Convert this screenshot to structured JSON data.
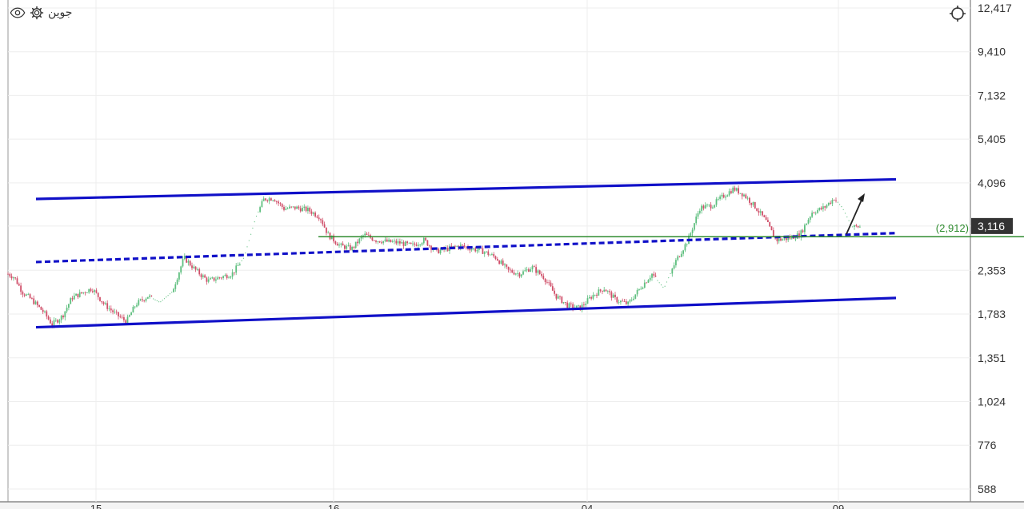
{
  "toolbar": {
    "symbol_label": "جوین",
    "settings_icon": "gear-icon",
    "visibility_icon": "eye-icon",
    "crosshair_icon": "crosshair-icon"
  },
  "colors": {
    "channel": "#1010c8",
    "horizontal_line": "#2e8b2e",
    "candle_up": "#5fbf7f",
    "candle_down": "#d0506a",
    "current_price_bg": "#333333",
    "grid": "#eeeeee"
  },
  "chart_data": {
    "type": "candlestick",
    "y_scale": "log",
    "y_ticks": [
      "12,417",
      "9,410",
      "7,132",
      "5,405",
      "4,096",
      "3,116",
      "2,353",
      "1,783",
      "1,351",
      "1,024",
      "776",
      "588"
    ],
    "x_ticks": [
      "15",
      "16",
      "04",
      "09"
    ],
    "current_price": {
      "label": "3,116",
      "value": 3116
    },
    "horizontal_line": {
      "label": "(2,912)",
      "value": 2912
    },
    "channel": {
      "upper": {
        "start": 3700,
        "end": 4190
      },
      "middle_dashed": {
        "start": 2480,
        "end": 2980
      },
      "lower": {
        "start": 1640,
        "end": 1975
      }
    },
    "price_path": [
      [
        0,
        2300
      ],
      [
        8,
        2250
      ],
      [
        18,
        2050
      ],
      [
        30,
        1950
      ],
      [
        45,
        1800
      ],
      [
        55,
        1670
      ],
      [
        68,
        1760
      ],
      [
        80,
        1980
      ],
      [
        95,
        2050
      ],
      [
        105,
        2100
      ],
      [
        120,
        1900
      ],
      [
        135,
        1780
      ],
      [
        148,
        1700
      ],
      [
        160,
        1900
      ],
      [
        175,
        2000
      ],
      [
        190,
        1920
      ],
      [
        205,
        2050
      ],
      [
        220,
        2550
      ],
      [
        235,
        2350
      ],
      [
        250,
        2200
      ],
      [
        265,
        2250
      ],
      [
        280,
        2300
      ],
      [
        295,
        2550
      ],
      [
        310,
        3300
      ],
      [
        320,
        3700
      ],
      [
        332,
        3720
      ],
      [
        345,
        3480
      ],
      [
        360,
        3500
      ],
      [
        375,
        3450
      ],
      [
        390,
        3300
      ],
      [
        400,
        2950
      ],
      [
        415,
        2750
      ],
      [
        430,
        2700
      ],
      [
        445,
        2950
      ],
      [
        460,
        2850
      ],
      [
        475,
        2820
      ],
      [
        490,
        2800
      ],
      [
        505,
        2750
      ],
      [
        520,
        2850
      ],
      [
        535,
        2650
      ],
      [
        550,
        2700
      ],
      [
        565,
        2750
      ],
      [
        580,
        2700
      ],
      [
        595,
        2650
      ],
      [
        610,
        2550
      ],
      [
        625,
        2350
      ],
      [
        640,
        2300
      ],
      [
        655,
        2400
      ],
      [
        670,
        2250
      ],
      [
        685,
        2000
      ],
      [
        700,
        1880
      ],
      [
        715,
        1850
      ],
      [
        730,
        2000
      ],
      [
        745,
        2100
      ],
      [
        760,
        1950
      ],
      [
        775,
        1900
      ],
      [
        790,
        2100
      ],
      [
        805,
        2300
      ],
      [
        820,
        2100
      ],
      [
        835,
        2500
      ],
      [
        850,
        2850
      ],
      [
        865,
        3500
      ],
      [
        880,
        3550
      ],
      [
        893,
        3750
      ],
      [
        907,
        3950
      ],
      [
        920,
        3800
      ],
      [
        935,
        3500
      ],
      [
        948,
        3200
      ],
      [
        960,
        2850
      ],
      [
        975,
        2880
      ],
      [
        990,
        2950
      ],
      [
        1005,
        3400
      ],
      [
        1020,
        3500
      ],
      [
        1033,
        3720
      ],
      [
        1043,
        3500
      ],
      [
        1055,
        3100
      ]
    ],
    "annotation": "arrow-up"
  }
}
